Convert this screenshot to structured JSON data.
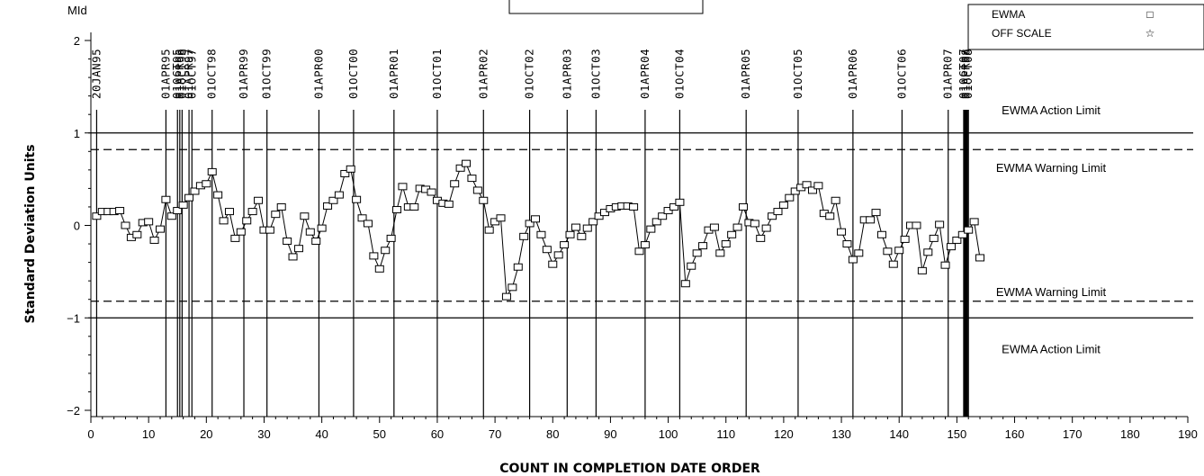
{
  "chart_data": {
    "type": "line",
    "title": "",
    "xlabel": "COUNT IN COMPLETION DATE ORDER",
    "ylabel": "Standard Deviation Units",
    "y_unit": "MId",
    "xlim": [
      0,
      190
    ],
    "ylim": [
      -2,
      2
    ],
    "x_ticks": [
      0,
      10,
      20,
      30,
      40,
      50,
      60,
      70,
      80,
      90,
      100,
      110,
      120,
      130,
      140,
      150,
      160,
      170,
      180,
      190
    ],
    "y_ticks": [
      -2,
      -1,
      0,
      1,
      2
    ],
    "grid": false,
    "legend_position": "top-right",
    "legend": [
      {
        "label": "EWMA",
        "marker": "□"
      },
      {
        "label": "OFF SCALE",
        "marker": "☆"
      }
    ],
    "limits": [
      {
        "label": "EWMA Action Limit",
        "value": 1,
        "style": "solid"
      },
      {
        "label": "EWMA Warning Limit",
        "value": 0.82,
        "style": "dashed"
      },
      {
        "label": "EWMA Warning Limit",
        "value": -0.82,
        "style": "dashed"
      },
      {
        "label": "EWMA Action Limit",
        "value": -1,
        "style": "solid"
      }
    ],
    "date_markers": [
      {
        "x": 1,
        "label": "20JAN95"
      },
      {
        "x": 13,
        "label": "01APR95"
      },
      {
        "x": 15,
        "label": "01OCT95"
      },
      {
        "x": 15.4,
        "label": "01APR96"
      },
      {
        "x": 15.8,
        "label": "01OCT96"
      },
      {
        "x": 17,
        "label": "01APR97"
      },
      {
        "x": 17.5,
        "label": "01OCT97"
      },
      {
        "x": 21,
        "label": "01OCT98"
      },
      {
        "x": 26.5,
        "label": "01APR99"
      },
      {
        "x": 30.5,
        "label": "01OCT99"
      },
      {
        "x": 39.5,
        "label": "01APR00"
      },
      {
        "x": 45.5,
        "label": "01OCT00"
      },
      {
        "x": 52.5,
        "label": "01APR01"
      },
      {
        "x": 60,
        "label": "01OCT01"
      },
      {
        "x": 68,
        "label": "01APR02"
      },
      {
        "x": 76,
        "label": "01OCT02"
      },
      {
        "x": 82.5,
        "label": "01APR03"
      },
      {
        "x": 87.5,
        "label": "01OCT03"
      },
      {
        "x": 96,
        "label": "01APR04"
      },
      {
        "x": 102,
        "label": "01OCT04"
      },
      {
        "x": 113.5,
        "label": "01APR05"
      },
      {
        "x": 122.5,
        "label": "01OCT05"
      },
      {
        "x": 132,
        "label": "01APR06"
      },
      {
        "x": 140.5,
        "label": "01OCT06"
      },
      {
        "x": 148.5,
        "label": "01APR07"
      },
      {
        "x": 151.2,
        "label": "01OCT07"
      },
      {
        "x": 151.6,
        "label": "01APR08"
      },
      {
        "x": 152,
        "label": "01OCT08"
      }
    ],
    "series": [
      {
        "name": "EWMA",
        "x": [
          1,
          2,
          3,
          4,
          5,
          6,
          7,
          8,
          9,
          10,
          11,
          12,
          13,
          14,
          15,
          16,
          17,
          18,
          19,
          20,
          21,
          22,
          23,
          24,
          25,
          26,
          27,
          28,
          29,
          30,
          31,
          32,
          33,
          34,
          35,
          36,
          37,
          38,
          39,
          40,
          41,
          42,
          43,
          44,
          45,
          46,
          47,
          48,
          49,
          50,
          51,
          52,
          53,
          54,
          55,
          56,
          57,
          58,
          59,
          60,
          61,
          62,
          63,
          64,
          65,
          66,
          67,
          68,
          69,
          70,
          71,
          72,
          73,
          74,
          75,
          76,
          77,
          78,
          79,
          80,
          81,
          82,
          83,
          84,
          85,
          86,
          87,
          88,
          89,
          90,
          91,
          92,
          93,
          94,
          95,
          96,
          97,
          98,
          99,
          100,
          101,
          102,
          103,
          104,
          105,
          106,
          107,
          108,
          109,
          110,
          111,
          112,
          113,
          114,
          115,
          116,
          117,
          118,
          119,
          120,
          121,
          122,
          123,
          124,
          125,
          126,
          127,
          128,
          129,
          130,
          131,
          132,
          133,
          134,
          135,
          136,
          137,
          138,
          139,
          140,
          141,
          142,
          143,
          144,
          145,
          146,
          147,
          148,
          149,
          150,
          151,
          152,
          153,
          154
        ],
        "y": [
          0.1,
          0.15,
          0.15,
          0.15,
          0.16,
          0.0,
          -0.13,
          -0.1,
          0.03,
          0.04,
          -0.16,
          -0.04,
          0.28,
          0.1,
          0.16,
          0.22,
          0.3,
          0.37,
          0.43,
          0.45,
          0.58,
          0.33,
          0.05,
          0.15,
          -0.14,
          -0.07,
          0.05,
          0.15,
          0.27,
          -0.05,
          -0.05,
          0.12,
          0.2,
          -0.17,
          -0.34,
          -0.25,
          0.1,
          -0.07,
          -0.17,
          -0.03,
          0.21,
          0.27,
          0.33,
          0.56,
          0.61,
          0.28,
          0.08,
          0.02,
          -0.33,
          -0.47,
          -0.27,
          -0.14,
          0.17,
          0.42,
          0.2,
          0.2,
          0.4,
          0.39,
          0.36,
          0.27,
          0.24,
          0.23,
          0.45,
          0.62,
          0.67,
          0.51,
          0.38,
          0.27,
          -0.05,
          0.04,
          0.08,
          -0.77,
          -0.67,
          -0.45,
          -0.12,
          0.02,
          0.07,
          -0.1,
          -0.26,
          -0.42,
          -0.32,
          -0.21,
          -0.1,
          -0.02,
          -0.12,
          -0.03,
          0.04,
          0.1,
          0.14,
          0.18,
          0.2,
          0.21,
          0.21,
          0.2,
          -0.28,
          -0.21,
          -0.04,
          0.04,
          0.1,
          0.16,
          0.2,
          0.25,
          -0.63,
          -0.44,
          -0.3,
          -0.22,
          -0.05,
          -0.02,
          -0.3,
          -0.2,
          -0.1,
          -0.02,
          0.2,
          0.03,
          0.02,
          -0.14,
          -0.03,
          0.1,
          0.15,
          0.22,
          0.3,
          0.37,
          0.41,
          0.44,
          0.38,
          0.43,
          0.13,
          0.1,
          0.27,
          -0.07,
          -0.2,
          -0.37,
          -0.3,
          0.06,
          0.06,
          0.14,
          -0.1,
          -0.28,
          -0.42,
          -0.27,
          -0.15,
          0.0,
          0.0,
          -0.49,
          -0.29,
          -0.14,
          0.01,
          -0.43,
          -0.23,
          -0.16,
          -0.1,
          -0.05,
          0.04,
          -0.35
        ]
      }
    ]
  }
}
